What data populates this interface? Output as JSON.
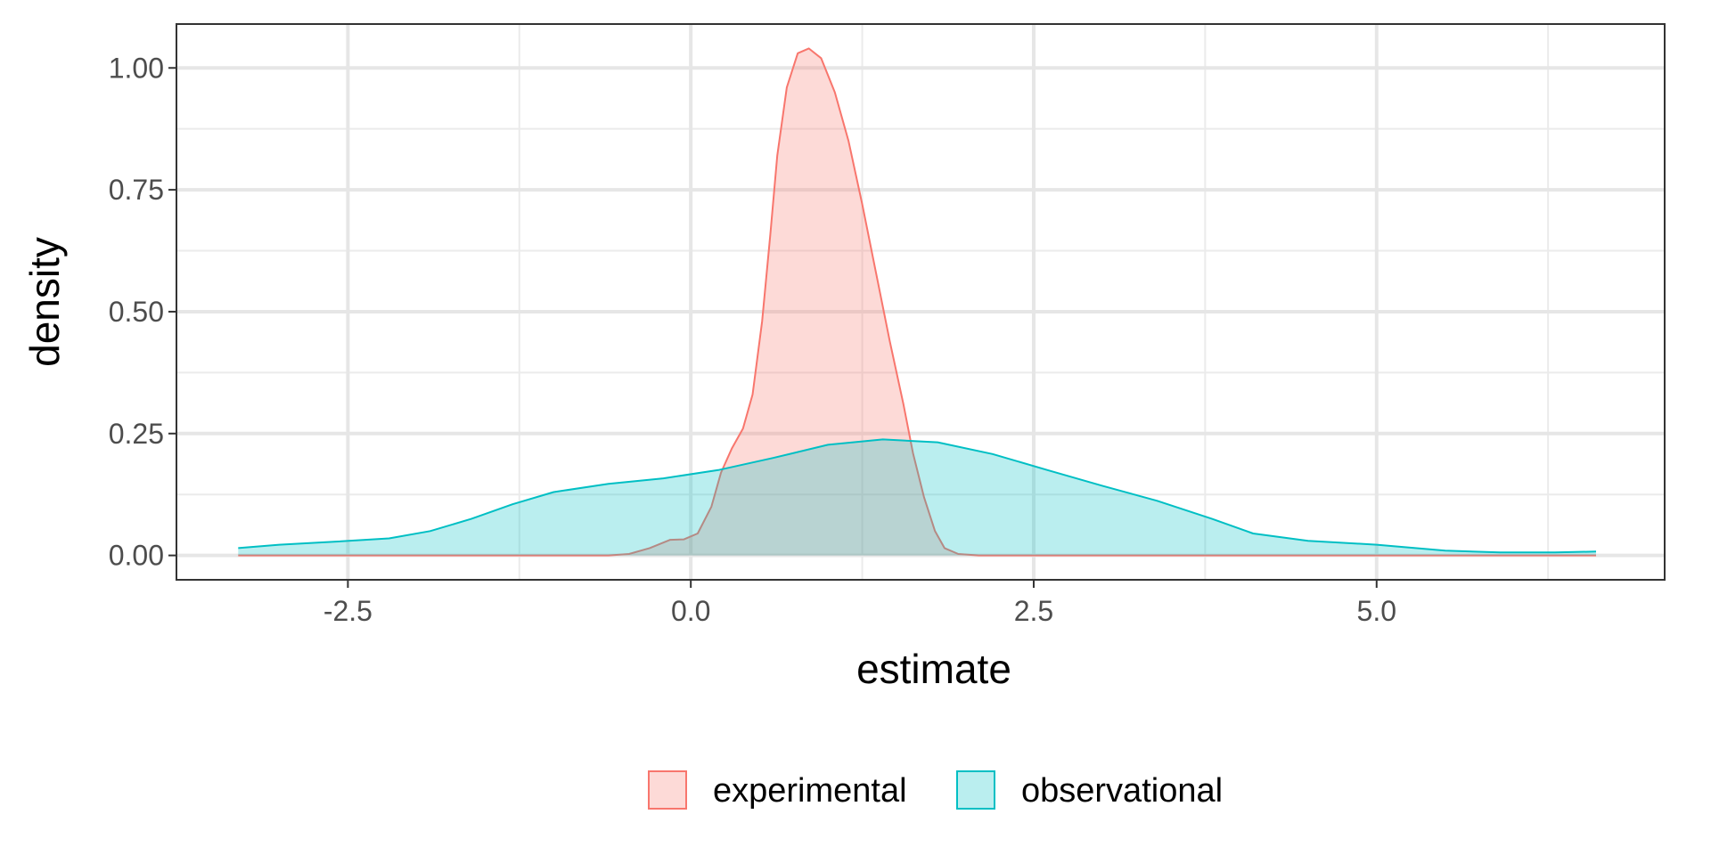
{
  "chart_data": {
    "type": "area",
    "xlabel": "estimate",
    "ylabel": "density",
    "xlim": [
      -3.75,
      7.1
    ],
    "ylim": [
      -0.05,
      1.09
    ],
    "x_ticks": [
      -2.5,
      0.0,
      2.5,
      5.0
    ],
    "x_tick_labels": [
      "-2.5",
      "0.0",
      "2.5",
      "5.0"
    ],
    "y_ticks": [
      0.0,
      0.25,
      0.5,
      0.75,
      1.0
    ],
    "y_tick_labels": [
      "0.00",
      "0.25",
      "0.50",
      "0.75",
      "1.00"
    ],
    "grid": true,
    "legend_position": "bottom",
    "series": [
      {
        "name": "experimental",
        "line_color": "#F8766D",
        "fill_color": "#F8766D",
        "points": [
          [
            -3.3,
            0.0
          ],
          [
            -0.6,
            0.0
          ],
          [
            -0.45,
            0.003
          ],
          [
            -0.3,
            0.015
          ],
          [
            -0.15,
            0.032
          ],
          [
            -0.05,
            0.033
          ],
          [
            0.05,
            0.045
          ],
          [
            0.15,
            0.1
          ],
          [
            0.22,
            0.17
          ],
          [
            0.3,
            0.22
          ],
          [
            0.38,
            0.26
          ],
          [
            0.45,
            0.33
          ],
          [
            0.52,
            0.48
          ],
          [
            0.58,
            0.66
          ],
          [
            0.63,
            0.82
          ],
          [
            0.7,
            0.96
          ],
          [
            0.78,
            1.03
          ],
          [
            0.86,
            1.04
          ],
          [
            0.95,
            1.02
          ],
          [
            1.05,
            0.95
          ],
          [
            1.15,
            0.85
          ],
          [
            1.25,
            0.72
          ],
          [
            1.35,
            0.58
          ],
          [
            1.45,
            0.44
          ],
          [
            1.55,
            0.31
          ],
          [
            1.62,
            0.21
          ],
          [
            1.7,
            0.12
          ],
          [
            1.78,
            0.05
          ],
          [
            1.85,
            0.015
          ],
          [
            1.95,
            0.003
          ],
          [
            2.1,
            0.0
          ],
          [
            6.6,
            0.0
          ]
        ]
      },
      {
        "name": "observational",
        "line_color": "#00BFC4",
        "fill_color": "#00BFC4",
        "points": [
          [
            -3.3,
            0.015
          ],
          [
            -3.0,
            0.022
          ],
          [
            -2.6,
            0.028
          ],
          [
            -2.2,
            0.035
          ],
          [
            -1.9,
            0.05
          ],
          [
            -1.6,
            0.075
          ],
          [
            -1.3,
            0.105
          ],
          [
            -1.0,
            0.13
          ],
          [
            -0.6,
            0.147
          ],
          [
            -0.2,
            0.158
          ],
          [
            0.2,
            0.175
          ],
          [
            0.6,
            0.2
          ],
          [
            1.0,
            0.227
          ],
          [
            1.4,
            0.238
          ],
          [
            1.8,
            0.232
          ],
          [
            2.2,
            0.208
          ],
          [
            2.6,
            0.175
          ],
          [
            3.0,
            0.143
          ],
          [
            3.4,
            0.112
          ],
          [
            3.8,
            0.075
          ],
          [
            4.1,
            0.045
          ],
          [
            4.5,
            0.03
          ],
          [
            5.0,
            0.022
          ],
          [
            5.5,
            0.01
          ],
          [
            5.9,
            0.006
          ],
          [
            6.3,
            0.006
          ],
          [
            6.6,
            0.008
          ]
        ]
      }
    ]
  }
}
